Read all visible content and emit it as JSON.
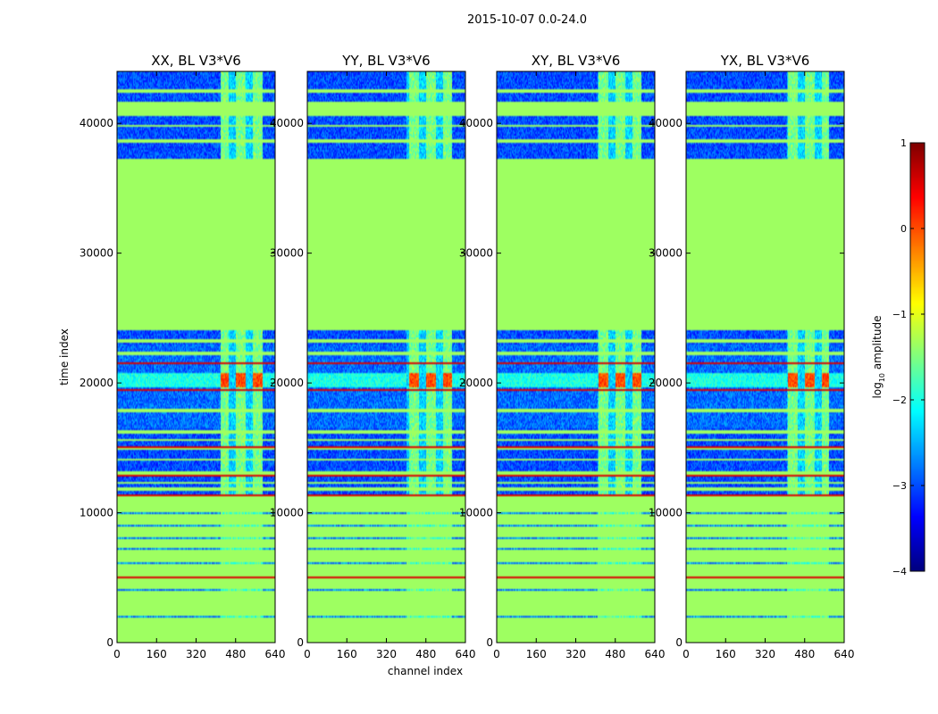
{
  "chart_data": {
    "type": "heatmap",
    "suptitle": "2015-10-07 0.0-24.0",
    "xlabel": "channel index",
    "ylabel": "time index",
    "xlim": [
      0,
      640
    ],
    "ylim": [
      0,
      44000
    ],
    "x_ticks": [
      "0",
      "160",
      "320",
      "480",
      "640"
    ],
    "y_ticks": [
      "0",
      "10000",
      "20000",
      "30000",
      "40000"
    ],
    "panels": [
      {
        "title": "XX, BL V3*V6",
        "bright_band_channels": [
          420,
          590
        ]
      },
      {
        "title": "YY, BL V3*V6",
        "bright_band_channels": [
          400,
          585
        ]
      },
      {
        "title": "XY, BL V3*V6",
        "bright_band_channels": [
          410,
          585
        ]
      },
      {
        "title": "YX, BL V3*V6",
        "bright_band_channels": [
          410,
          580
        ]
      }
    ],
    "colorbar": {
      "label": "log10 amplitude",
      "range": [
        -4,
        1
      ],
      "ticks": [
        "1",
        "0",
        "−1",
        "−2",
        "−3",
        "−4"
      ],
      "colormap": "jet"
    },
    "flagged_ranges": [
      [
        37300,
        24100
      ],
      [
        11300,
        0
      ]
    ],
    "data_ranges": [
      [
        24100,
        37300
      ],
      [
        11300,
        24100
      ],
      [
        37300,
        44000
      ]
    ],
    "red_lines": [
      5000,
      11400,
      12900,
      14300,
      15100,
      19500,
      21500
    ]
  }
}
